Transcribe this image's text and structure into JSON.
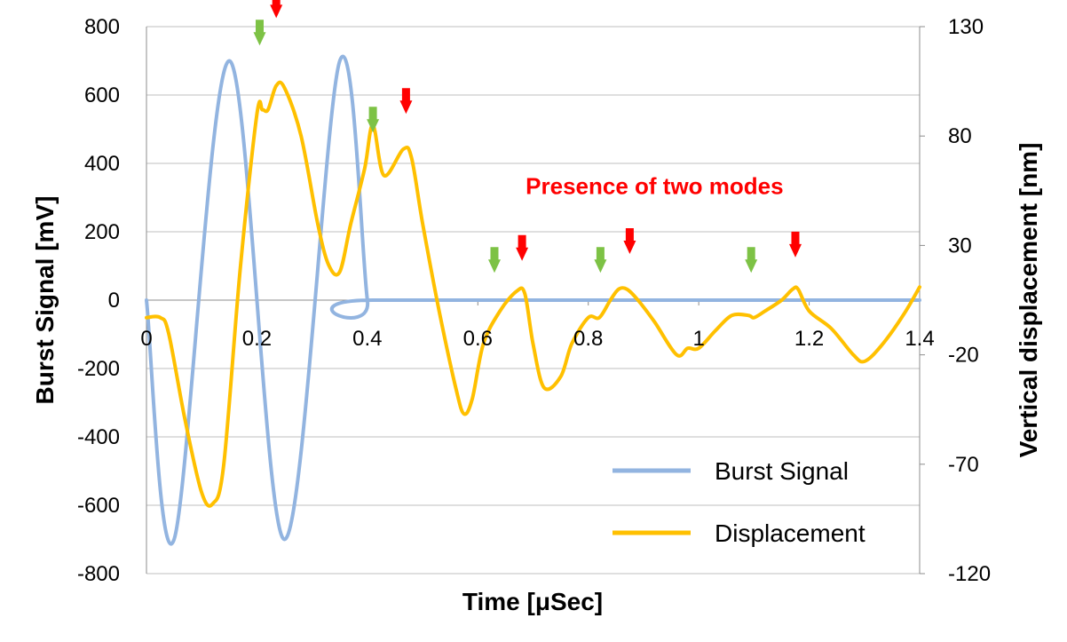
{
  "chart_data": {
    "type": "line",
    "xlabel": "Time [μSec]",
    "ylabel": "Burst  Signal [mV]",
    "y2label": "Vertical  displacement [nm]",
    "xlim": [
      0,
      1.4
    ],
    "ylim": [
      -800,
      800
    ],
    "y2lim": [
      -120,
      130
    ],
    "x_ticks": [
      0,
      0.2,
      0.4,
      0.6,
      0.8,
      1,
      1.2,
      1.4
    ],
    "x_tick_labels": [
      "0",
      "0.2",
      "0.4",
      "0.6",
      "0.8",
      "1",
      "1.2",
      "1.4"
    ],
    "y_ticks": [
      800,
      600,
      400,
      200,
      0,
      -200,
      -400,
      -600,
      -800
    ],
    "y_tick_labels": [
      "800",
      "600",
      "400",
      "200",
      "0",
      "-200",
      "-400",
      "-600",
      "-800"
    ],
    "y2_ticks": [
      130,
      80,
      30,
      -20,
      -70,
      -120
    ],
    "y2_tick_labels": [
      "130",
      "80",
      "30",
      "-20",
      "-70",
      "-120"
    ],
    "grid": true,
    "legend_position": "bottom-right",
    "annotation": {
      "text": "Presence of two modes",
      "color": "#ff0000",
      "x": 0.92,
      "y": 310
    },
    "series": [
      {
        "name": "Burst Signal",
        "axis": "left",
        "color": "#92b4e0",
        "x": [
          0,
          0.05,
          0.15,
          0.25,
          0.35,
          0.4,
          0.41,
          1.4
        ],
        "y": [
          0,
          -700,
          700,
          -700,
          700,
          0,
          0,
          0
        ]
      },
      {
        "name": "Displacement",
        "axis": "right",
        "color": "#ffc000",
        "x": [
          0,
          0.025,
          0.04,
          0.07,
          0.1,
          0.12,
          0.14,
          0.17,
          0.2,
          0.21,
          0.22,
          0.235,
          0.25,
          0.28,
          0.31,
          0.33,
          0.35,
          0.37,
          0.395,
          0.41,
          0.43,
          0.465,
          0.48,
          0.5,
          0.53,
          0.56,
          0.575,
          0.59,
          0.61,
          0.64,
          0.67,
          0.685,
          0.7,
          0.72,
          0.75,
          0.77,
          0.8,
          0.82,
          0.84,
          0.855,
          0.87,
          0.89,
          0.92,
          0.96,
          0.98,
          1.0,
          1.03,
          1.06,
          1.09,
          1.1,
          1.12,
          1.15,
          1.17,
          1.18,
          1.2,
          1.24,
          1.28,
          1.3,
          1.33,
          1.37,
          1.4
        ],
        "y": [
          -3,
          -3,
          -10,
          -50,
          -83,
          -88,
          -70,
          20,
          90,
          92,
          92,
          103,
          102,
          80,
          40,
          21,
          18,
          40,
          65,
          85,
          62,
          74,
          70,
          40,
          0,
          -35,
          -47,
          -40,
          -15,
          0,
          9,
          8,
          -15,
          -35,
          -30,
          -15,
          -3,
          -3,
          5,
          10,
          10,
          5,
          -5,
          -20,
          -17,
          -17,
          -9,
          -2,
          -2,
          -3,
          0,
          5,
          10,
          10,
          0,
          -8,
          -20,
          -23,
          -16,
          -2,
          11
        ]
      }
    ],
    "red_arrows": [
      {
        "x": 0.235,
        "y": 825
      },
      {
        "x": 0.47,
        "y": 545
      },
      {
        "x": 0.68,
        "y": 115
      },
      {
        "x": 0.875,
        "y": 135
      },
      {
        "x": 1.175,
        "y": 125
      }
    ],
    "green_arrows": [
      {
        "x": 0.205,
        "y": 745
      },
      {
        "x": 0.41,
        "y": 490
      },
      {
        "x": 0.63,
        "y": 80
      },
      {
        "x": 0.822,
        "y": 80
      },
      {
        "x": 1.095,
        "y": 80
      }
    ],
    "colors": {
      "grid": "#bfbfbf",
      "axis": "#8c8c8c",
      "red_arrow": "#ff0000",
      "green_arrow": "#7dc245"
    }
  }
}
